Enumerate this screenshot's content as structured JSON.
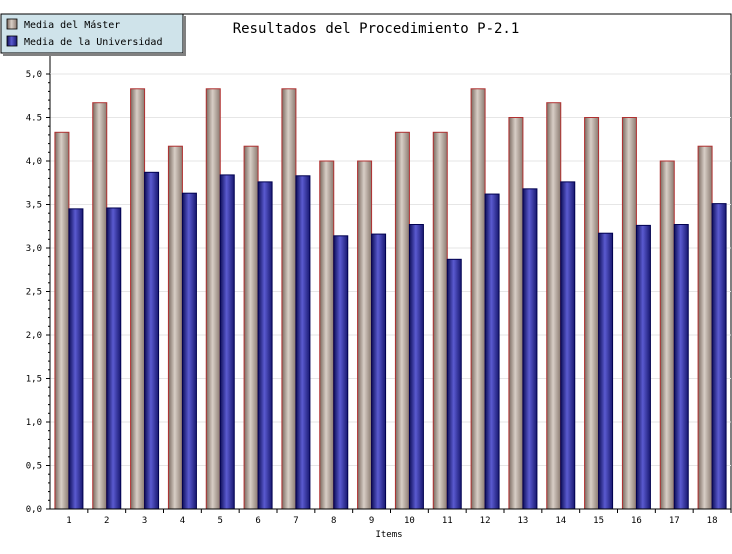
{
  "chart_data": {
    "type": "bar",
    "title": "Resultados del Procedimiento P-2.1",
    "xlabel": "Items",
    "ylabel": "",
    "ylim": [
      0,
      5
    ],
    "y_ticks": [
      "0,0",
      "0,5",
      "1,0",
      "1,5",
      "2,0",
      "2,5",
      "3,0",
      "3,5",
      "4,0",
      "4.5",
      "5,0"
    ],
    "categories": [
      "1",
      "2",
      "3",
      "4",
      "5",
      "6",
      "7",
      "8",
      "9",
      "10",
      "11",
      "12",
      "13",
      "14",
      "15",
      "16",
      "17",
      "18"
    ],
    "series": [
      {
        "name": "Media del Máster",
        "values": [
          4.33,
          4.67,
          4.83,
          4.17,
          4.83,
          4.17,
          4.83,
          4.0,
          4.0,
          4.33,
          4.33,
          4.83,
          4.5,
          4.67,
          4.5,
          4.5,
          4.0,
          4.17
        ],
        "color": "#a89080",
        "outline": "#b03030"
      },
      {
        "name": "Media de la Universidad",
        "values": [
          3.45,
          3.46,
          3.87,
          3.63,
          3.84,
          3.76,
          3.83,
          3.14,
          3.16,
          3.27,
          2.87,
          3.62,
          3.68,
          3.76,
          3.17,
          3.26,
          3.27,
          3.51
        ],
        "color": "#2a2a8a",
        "outline": "#000050"
      }
    ],
    "grid": true,
    "legend_position": "top-left",
    "legend_bg": "#cfe3ea"
  }
}
